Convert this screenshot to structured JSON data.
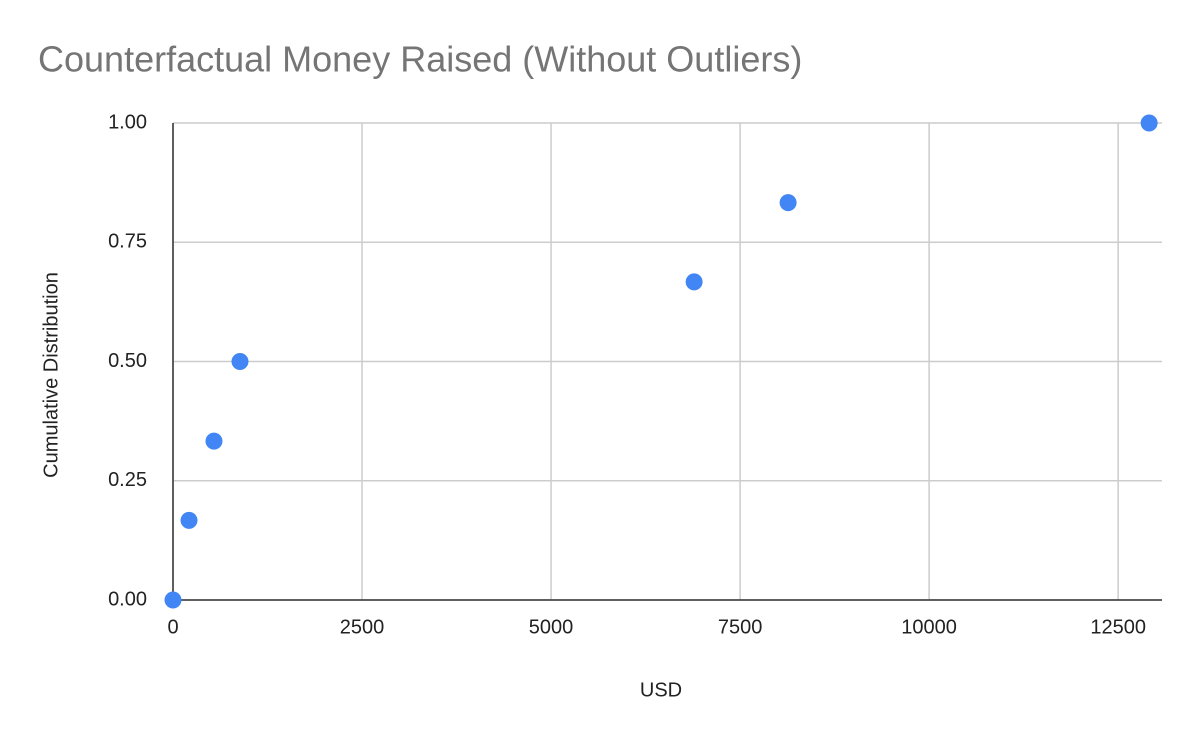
{
  "chart_data": {
    "type": "scatter",
    "title": "Counterfactual Money Raised (Without Outliers)",
    "x_label": "USD",
    "y_label": "Cumulative Distribution",
    "x": [
      0,
      212,
      542,
      886,
      6892,
      8135,
      12910
    ],
    "values": [
      0,
      0.167,
      0.333,
      0.5,
      0.667,
      0.833,
      1
    ],
    "color": "#4285f4",
    "xlim": [
      0,
      13080
    ],
    "ylim": [
      0,
      1
    ],
    "xticks": [
      0,
      2500,
      5000,
      7500,
      10000,
      12500
    ],
    "yticks": [
      {
        "value": 0,
        "label": "0.00"
      },
      {
        "value": 0.25,
        "label": "0.25"
      },
      {
        "value": 0.5,
        "label": "0.50"
      },
      {
        "value": 0.75,
        "label": "0.75"
      },
      {
        "value": 1,
        "label": "1.00"
      }
    ],
    "grid": true
  }
}
